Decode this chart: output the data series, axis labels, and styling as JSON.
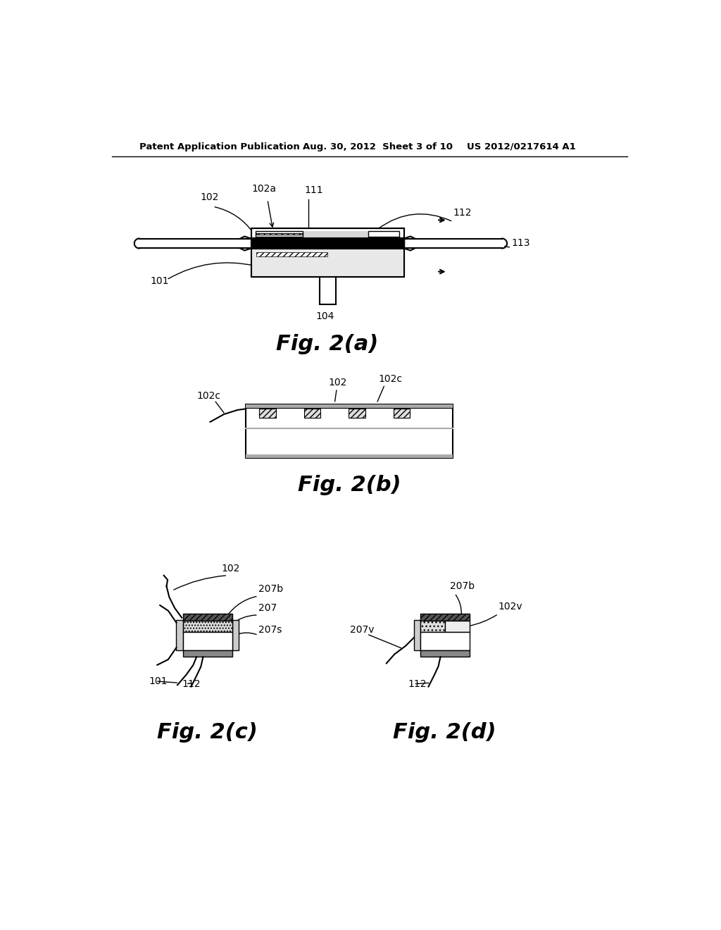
{
  "background_color": "#ffffff",
  "header_left": "Patent Application Publication",
  "header_center": "Aug. 30, 2012  Sheet 3 of 10",
  "header_right": "US 2012/0217614 A1",
  "fig2a_title": "Fig. 2(a)",
  "fig2b_title": "Fig. 2(b)",
  "fig2c_title": "Fig. 2(c)",
  "fig2d_title": "Fig. 2(d)"
}
